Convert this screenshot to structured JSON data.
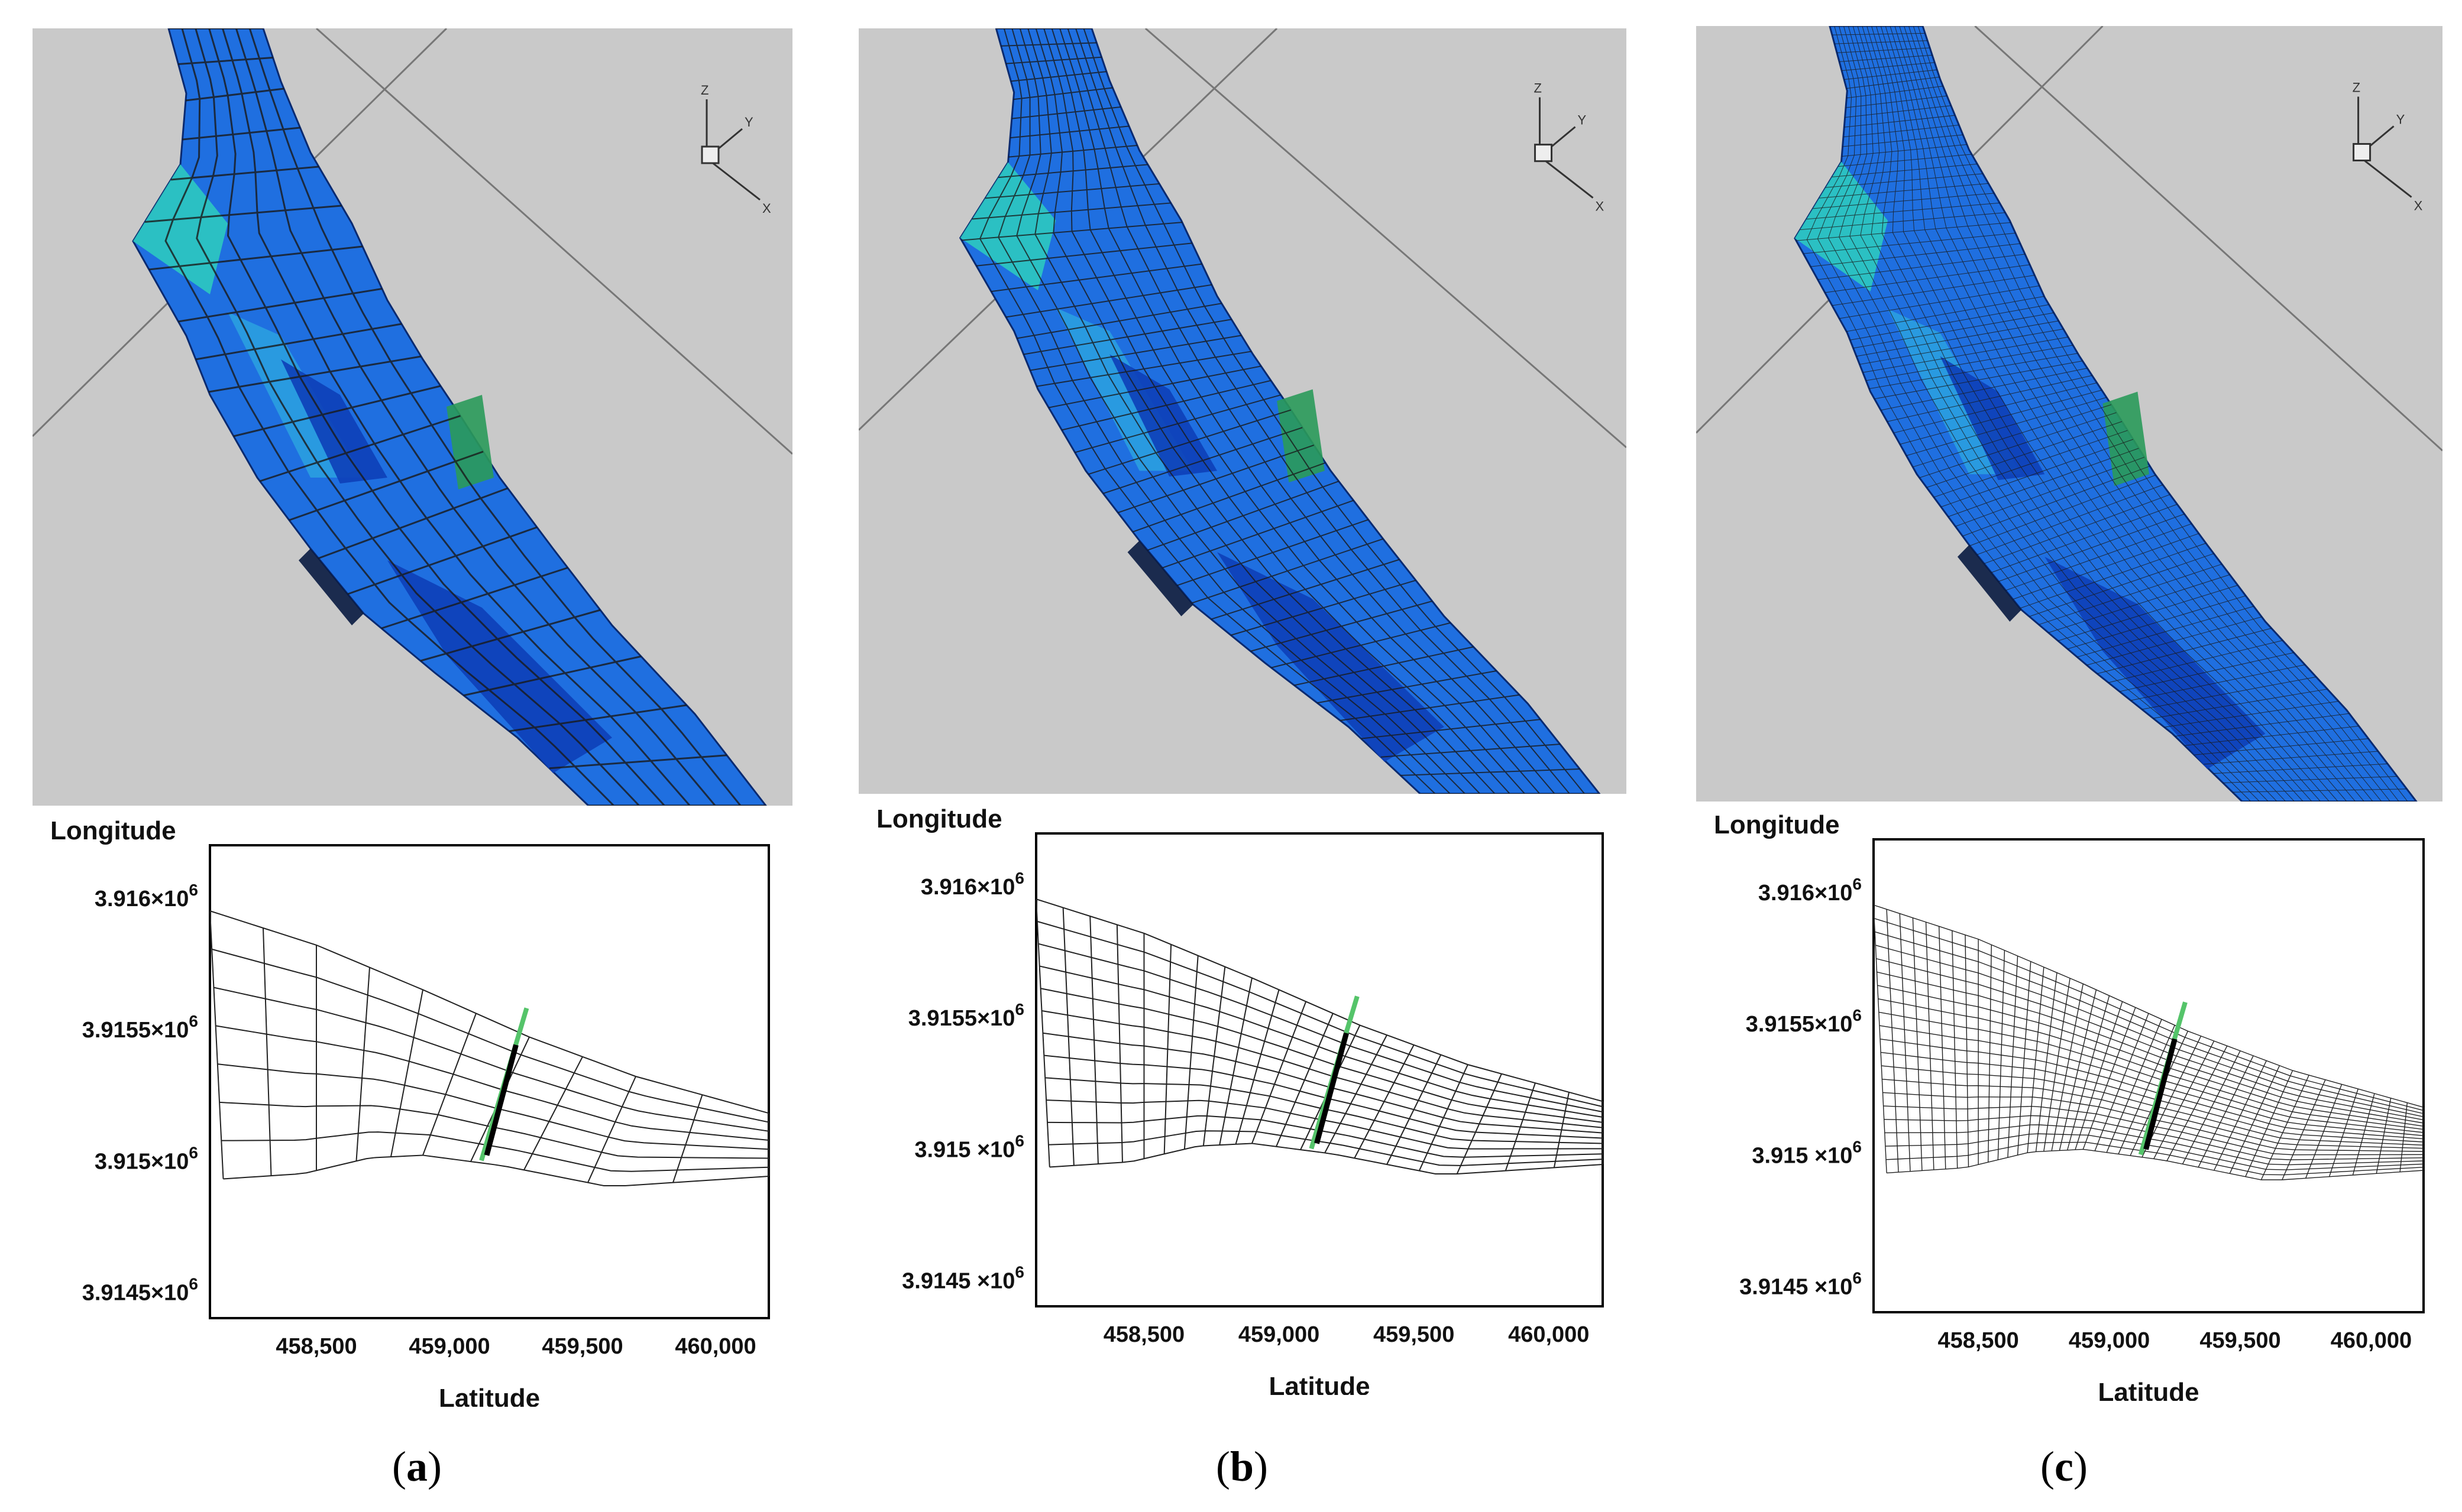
{
  "panels": [
    {
      "id": "a",
      "caption": {
        "open": "(",
        "letter": "a",
        "close": ")"
      },
      "plot": {
        "ylabel": "Longitude",
        "xlabel": "Latitude",
        "yticks": [
          {
            "mant": "3.916×10",
            "exp": "6"
          },
          {
            "mant": "3.9155×10",
            "exp": "6"
          },
          {
            "mant": "3.915×10",
            "exp": "6"
          },
          {
            "mant": "3.9145×10",
            "exp": "6"
          }
        ],
        "xticks": [
          "458,500",
          "459,000",
          "459,500",
          "460,000"
        ]
      },
      "triad": {
        "z": "Z",
        "y": "Y",
        "x": "X"
      }
    },
    {
      "id": "b",
      "caption": {
        "open": "(",
        "letter": "b",
        "close": ")"
      },
      "plot": {
        "ylabel": "Longitude",
        "xlabel": "Latitude",
        "yticks": [
          {
            "mant": "3.916×10",
            "exp": "6"
          },
          {
            "mant": "3.9155×10",
            "exp": "6"
          },
          {
            "mant": "3.915 ×10",
            "exp": "6"
          },
          {
            "mant": "3.9145 ×10",
            "exp": "6"
          }
        ],
        "xticks": [
          "458,500",
          "459,000",
          "459,500",
          "460,000"
        ]
      },
      "triad": {
        "z": "Z",
        "y": "Y",
        "x": "X"
      }
    },
    {
      "id": "c",
      "caption": {
        "open": "(",
        "letter": "c",
        "close": ")"
      },
      "plot": {
        "ylabel": "Longitude",
        "xlabel": "Latitude",
        "yticks": [
          {
            "mant": "3.916×10",
            "exp": "6"
          },
          {
            "mant": "3.9155×10",
            "exp": "6"
          },
          {
            "mant": "3.915 ×10",
            "exp": "6"
          },
          {
            "mant": "3.9145 ×10",
            "exp": "6"
          }
        ],
        "xticks": [
          "458,500",
          "459,000",
          "459,500",
          "460,000"
        ]
      },
      "triad": {
        "z": "Z",
        "y": "Y",
        "x": "X"
      }
    }
  ],
  "mesh_density": [
    {
      "panel": "a",
      "i_lines": 10,
      "j_lines": 7
    },
    {
      "panel": "b",
      "i_lines": 20,
      "j_lines": 12
    },
    {
      "panel": "c",
      "i_lines": 40,
      "j_lines": 20
    }
  ],
  "colors": {
    "background_3d": "#c9c9c9",
    "river_blue": "#1f6fe0",
    "river_dark": "#0d3fb8",
    "river_cyan": "#2cc9c0",
    "river_green": "#2a9a5a",
    "mesh_line": "#1a1a1a",
    "weir_green": "#55c46a"
  }
}
